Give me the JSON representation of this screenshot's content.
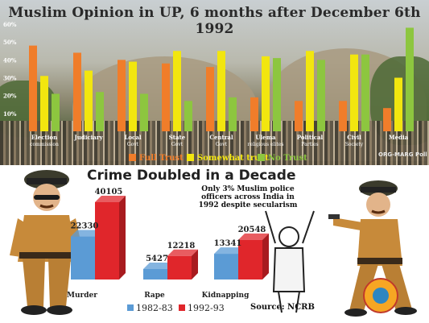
{
  "top_title": "Muslim Opinion in UP, 6 months after December 6th 1992",
  "credit": "ORG-MARG Poll",
  "bottom_title": "Crime Doubled in a Decade",
  "note": "Only 3% Muslim police officers across India in 1992 despite secularism",
  "source": "Source: NCRB",
  "colors": {
    "full_trust": "#f07d2a",
    "somewhat_trust": "#f2e60f",
    "no_trust": "#8dc63f",
    "y1982": "#5b9bd5",
    "y1992": "#e0262b"
  },
  "chart_data": [
    {
      "type": "bar",
      "title": "Muslim Opinion in UP, 6 months after December 6th 1992",
      "categories": [
        "Election commission",
        "Judiciary",
        "Local Govt",
        "State Govt",
        "Central Govt",
        "Ulema religious elites",
        "Political Parties",
        "Civil Society",
        "Media"
      ],
      "series": [
        {
          "name": "Full Trust",
          "values": [
            48,
            44,
            40,
            38,
            36,
            19,
            17,
            17,
            13
          ]
        },
        {
          "name": "Somewhat trust",
          "values": [
            31,
            34,
            39,
            45,
            45,
            42,
            45,
            43,
            30
          ]
        },
        {
          "name": "No Trust",
          "values": [
            21,
            22,
            21,
            17,
            19,
            41,
            40,
            43,
            58
          ]
        }
      ],
      "ylim": [
        0,
        60
      ],
      "yticks": [
        "10%",
        "20%",
        "30%",
        "40%",
        "50%",
        "60%"
      ],
      "legend": "bottom"
    },
    {
      "type": "bar",
      "title": "Crime Doubled in a Decade",
      "categories": [
        "Murder",
        "Rape",
        "Kidnapping"
      ],
      "series": [
        {
          "name": "1982-83",
          "values": [
            22330,
            5427,
            13341
          ]
        },
        {
          "name": "1992-93",
          "values": [
            40105,
            12218,
            20548
          ]
        }
      ],
      "labels_1982": [
        "22330",
        "5427",
        "13341"
      ],
      "labels_1992": [
        "40105",
        "12218",
        "20548"
      ],
      "legend": "bottom"
    }
  ]
}
